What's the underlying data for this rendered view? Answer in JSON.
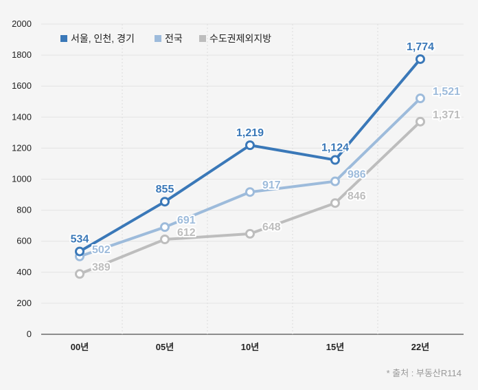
{
  "chart_data": {
    "type": "line",
    "categories": [
      "00년",
      "05년",
      "10년",
      "15년",
      "22년"
    ],
    "series": [
      {
        "name": "서울, 인천, 경기",
        "values": [
          534,
          855,
          1219,
          1124,
          1774
        ],
        "labels": [
          "534",
          "855",
          "1,219",
          "1,124",
          "1,774"
        ],
        "color": "#3a78b8"
      },
      {
        "name": "전국",
        "values": [
          502,
          691,
          917,
          986,
          1521
        ],
        "labels": [
          "502",
          "691",
          "917",
          "986",
          "1,521"
        ],
        "color": "#9dbbdb"
      },
      {
        "name": "수도권제외지방",
        "values": [
          389,
          612,
          648,
          846,
          1371
        ],
        "labels": [
          "389",
          "612",
          "648",
          "846",
          "1,371"
        ],
        "color": "#bdbdbd"
      }
    ],
    "yticks": [
      "0",
      "200",
      "400",
      "600",
      "800",
      "1000",
      "1200",
      "1400",
      "1600",
      "1800",
      "2000"
    ],
    "ylim": [
      0,
      2000
    ],
    "grid": true,
    "legend_position": "top-left"
  },
  "source": "* 출처 : 부동산R114"
}
